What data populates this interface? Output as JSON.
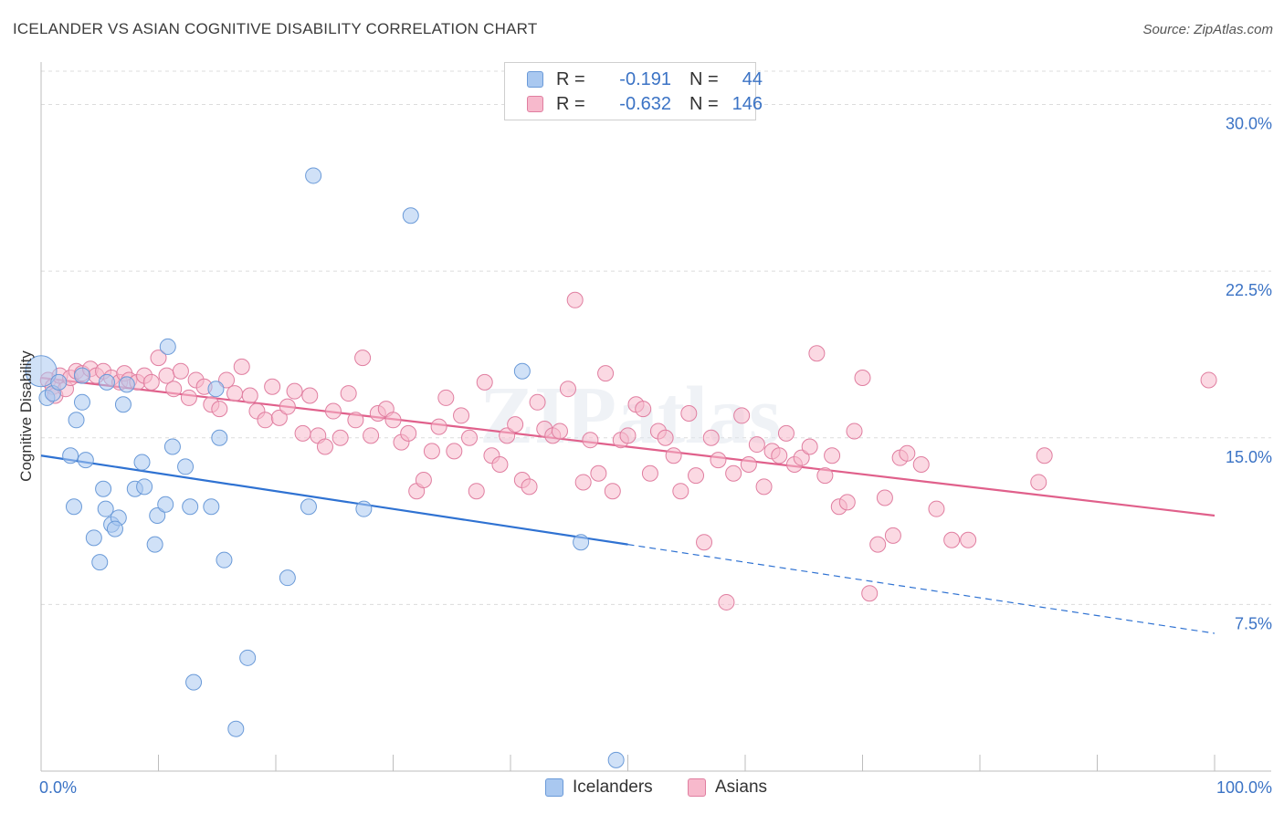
{
  "header": {
    "title": "ICELANDER VS ASIAN COGNITIVE DISABILITY CORRELATION CHART",
    "source": "Source: ZipAtlas.com"
  },
  "legend": {
    "rows": [
      {
        "r_label": "R =",
        "r_value": "-0.191",
        "n_label": "N =",
        "n_value": "44",
        "color": "#a9c8f0",
        "border": "#6a9ad8"
      },
      {
        "r_label": "R =",
        "r_value": "-0.632",
        "n_label": "N =",
        "n_value": "146",
        "color": "#f7b9cc",
        "border": "#e07ea0"
      }
    ],
    "bottom": [
      {
        "label": "Icelanders",
        "color": "#a9c8f0",
        "border": "#6a9ad8"
      },
      {
        "label": "Asians",
        "color": "#f7b9cc",
        "border": "#e07ea0"
      }
    ]
  },
  "chart_data": {
    "type": "scatter",
    "title": "ICELANDER VS ASIAN COGNITIVE DISABILITY CORRELATION CHART",
    "ylabel": "Cognitive Disability",
    "xlabel": "",
    "xlim": [
      0,
      100
    ],
    "ylim": [
      0,
      31.5
    ],
    "x_tick_labels": [
      "0.0%",
      "100.0%"
    ],
    "y_ticks": [
      7.5,
      15.0,
      22.5,
      30.0
    ],
    "y_tick_labels": [
      "7.5%",
      "15.0%",
      "22.5%",
      "30.0%"
    ],
    "grid": true,
    "watermark": "ZIPatlas",
    "series": [
      {
        "name": "Icelanders",
        "color": "#6a9ad8",
        "fill": "#a9c8f0",
        "trend": {
          "x0": 0,
          "y0": 14.2,
          "x1": 50,
          "y1": 10.2,
          "dashed_to_x": 100,
          "dashed_to_y": 6.2,
          "color": "#2f72d2"
        },
        "points": [
          [
            0,
            18.0
          ],
          [
            0.5,
            16.8
          ],
          [
            1,
            17.0
          ],
          [
            1.5,
            17.5
          ],
          [
            2.5,
            14.2
          ],
          [
            2.8,
            11.9
          ],
          [
            3,
            15.8
          ],
          [
            3.5,
            16.6
          ],
          [
            3.8,
            14.0
          ],
          [
            3.5,
            17.8
          ],
          [
            4.5,
            10.5
          ],
          [
            5,
            9.4
          ],
          [
            5.3,
            12.7
          ],
          [
            5.5,
            11.8
          ],
          [
            6,
            11.1
          ],
          [
            6.6,
            11.4
          ],
          [
            6.3,
            10.9
          ],
          [
            5.6,
            17.5
          ],
          [
            7,
            16.5
          ],
          [
            7.3,
            17.4
          ],
          [
            8,
            12.7
          ],
          [
            8.6,
            13.9
          ],
          [
            8.8,
            12.8
          ],
          [
            9.7,
            10.2
          ],
          [
            9.9,
            11.5
          ],
          [
            10.8,
            19.1
          ],
          [
            11.2,
            14.6
          ],
          [
            10.6,
            12.0
          ],
          [
            12.3,
            13.7
          ],
          [
            12.7,
            11.9
          ],
          [
            13.0,
            4.0
          ],
          [
            14.5,
            11.9
          ],
          [
            14.9,
            17.2
          ],
          [
            15.2,
            15.0
          ],
          [
            15.6,
            9.5
          ],
          [
            16.6,
            1.9
          ],
          [
            17.6,
            5.1
          ],
          [
            21.0,
            8.7
          ],
          [
            23.2,
            26.8
          ],
          [
            22.8,
            11.9
          ],
          [
            27.5,
            11.8
          ],
          [
            31.5,
            25.0
          ],
          [
            41.0,
            18.0
          ],
          [
            46.0,
            10.3
          ],
          [
            49.0,
            0.5
          ]
        ]
      },
      {
        "name": "Asians",
        "color": "#e07ea0",
        "fill": "#f7b9cc",
        "trend": {
          "x0": 0,
          "y0": 17.7,
          "x1": 100,
          "y1": 11.5,
          "color": "#e0608b"
        },
        "points": [
          [
            0.6,
            17.6
          ],
          [
            1.0,
            17.3
          ],
          [
            1.2,
            16.9
          ],
          [
            1.6,
            17.8
          ],
          [
            2.1,
            17.2
          ],
          [
            2.5,
            17.7
          ],
          [
            3.0,
            18.0
          ],
          [
            3.5,
            17.9
          ],
          [
            4.2,
            18.1
          ],
          [
            4.7,
            17.8
          ],
          [
            5.3,
            18.0
          ],
          [
            6.0,
            17.7
          ],
          [
            6.7,
            17.5
          ],
          [
            7.1,
            17.9
          ],
          [
            7.5,
            17.6
          ],
          [
            8.2,
            17.5
          ],
          [
            8.8,
            17.8
          ],
          [
            9.4,
            17.5
          ],
          [
            10.0,
            18.6
          ],
          [
            10.7,
            17.8
          ],
          [
            11.3,
            17.2
          ],
          [
            11.9,
            18.0
          ],
          [
            12.6,
            16.8
          ],
          [
            13.2,
            17.6
          ],
          [
            13.9,
            17.3
          ],
          [
            14.5,
            16.5
          ],
          [
            15.2,
            16.3
          ],
          [
            15.8,
            17.6
          ],
          [
            16.5,
            17.0
          ],
          [
            17.1,
            18.2
          ],
          [
            17.8,
            16.9
          ],
          [
            18.4,
            16.2
          ],
          [
            19.1,
            15.8
          ],
          [
            19.7,
            17.3
          ],
          [
            20.3,
            15.9
          ],
          [
            21.0,
            16.4
          ],
          [
            21.6,
            17.1
          ],
          [
            22.3,
            15.2
          ],
          [
            22.9,
            16.9
          ],
          [
            23.6,
            15.1
          ],
          [
            24.2,
            14.6
          ],
          [
            24.9,
            16.2
          ],
          [
            25.5,
            15.0
          ],
          [
            26.2,
            17.0
          ],
          [
            26.8,
            15.8
          ],
          [
            27.4,
            18.6
          ],
          [
            28.1,
            15.1
          ],
          [
            28.7,
            16.1
          ],
          [
            29.4,
            16.3
          ],
          [
            30.0,
            15.8
          ],
          [
            30.7,
            14.8
          ],
          [
            31.3,
            15.2
          ],
          [
            32.0,
            12.6
          ],
          [
            32.6,
            13.1
          ],
          [
            33.3,
            14.4
          ],
          [
            33.9,
            15.5
          ],
          [
            34.5,
            16.8
          ],
          [
            35.2,
            14.4
          ],
          [
            35.8,
            16.0
          ],
          [
            36.5,
            15.0
          ],
          [
            37.1,
            12.6
          ],
          [
            37.8,
            17.5
          ],
          [
            38.4,
            14.2
          ],
          [
            39.1,
            13.8
          ],
          [
            39.7,
            15.1
          ],
          [
            40.4,
            15.6
          ],
          [
            41.0,
            13.1
          ],
          [
            41.6,
            12.8
          ],
          [
            42.3,
            16.6
          ],
          [
            42.9,
            15.4
          ],
          [
            43.6,
            15.1
          ],
          [
            44.2,
            15.3
          ],
          [
            44.9,
            17.2
          ],
          [
            45.5,
            21.2
          ],
          [
            46.2,
            13.0
          ],
          [
            46.8,
            14.9
          ],
          [
            47.5,
            13.4
          ],
          [
            48.1,
            17.9
          ],
          [
            48.7,
            12.6
          ],
          [
            49.4,
            14.9
          ],
          [
            50.0,
            15.1
          ],
          [
            50.7,
            16.5
          ],
          [
            51.3,
            16.3
          ],
          [
            51.9,
            13.4
          ],
          [
            52.6,
            15.3
          ],
          [
            53.2,
            15.0
          ],
          [
            53.9,
            14.2
          ],
          [
            54.5,
            12.6
          ],
          [
            55.2,
            16.1
          ],
          [
            55.8,
            13.3
          ],
          [
            56.5,
            10.3
          ],
          [
            57.1,
            15.0
          ],
          [
            57.7,
            14.0
          ],
          [
            58.4,
            7.6
          ],
          [
            59.0,
            13.4
          ],
          [
            59.7,
            16.0
          ],
          [
            60.3,
            13.8
          ],
          [
            61.0,
            14.7
          ],
          [
            61.6,
            12.8
          ],
          [
            62.3,
            14.4
          ],
          [
            62.9,
            14.2
          ],
          [
            63.5,
            15.2
          ],
          [
            64.2,
            13.8
          ],
          [
            64.8,
            14.1
          ],
          [
            65.5,
            14.6
          ],
          [
            66.1,
            18.8
          ],
          [
            66.8,
            13.3
          ],
          [
            67.4,
            14.2
          ],
          [
            68.0,
            11.9
          ],
          [
            68.7,
            12.1
          ],
          [
            69.3,
            15.3
          ],
          [
            70.0,
            17.7
          ],
          [
            70.6,
            8.0
          ],
          [
            71.3,
            10.2
          ],
          [
            71.9,
            12.3
          ],
          [
            72.6,
            10.6
          ],
          [
            73.2,
            14.1
          ],
          [
            73.8,
            14.3
          ],
          [
            75.0,
            13.8
          ],
          [
            76.3,
            11.8
          ],
          [
            77.6,
            10.4
          ],
          [
            79.0,
            10.4
          ],
          [
            85.0,
            13.0
          ],
          [
            85.5,
            14.2
          ],
          [
            99.5,
            17.6
          ]
        ]
      }
    ]
  }
}
